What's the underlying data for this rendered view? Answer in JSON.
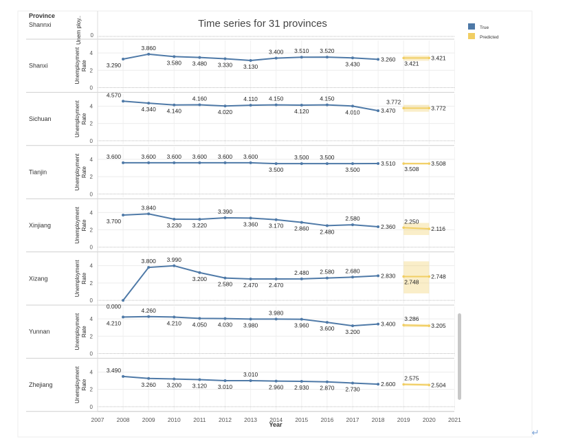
{
  "chart_data": {
    "type": "line",
    "title": "Time series for 31 provinces",
    "xlabel": "Year",
    "ylabel": "Unemployment Rate",
    "header_label": "Province",
    "x_ticks": [
      "2007",
      "2008",
      "2009",
      "2010",
      "2011",
      "2012",
      "2013",
      "2014",
      "2015",
      "2016",
      "2017",
      "2018",
      "2019",
      "2020",
      "2021"
    ],
    "y_ticks": [
      "0",
      "2",
      "4"
    ],
    "legend": [
      {
        "name": "True",
        "color": "#4e79a7"
      },
      {
        "name": "Predicted",
        "color": "#f1ce63"
      }
    ],
    "partial_row": {
      "province": "Shannxi",
      "ylabel_partial": "Unem ploy..",
      "tick": "0"
    },
    "panels": [
      {
        "province": "Shanxi",
        "true_years": [
          2008,
          2009,
          2010,
          2011,
          2012,
          2013,
          2014,
          2015,
          2016,
          2017,
          2018
        ],
        "true_values": [
          3.29,
          3.86,
          3.58,
          3.48,
          3.33,
          3.13,
          3.4,
          3.51,
          3.52,
          3.43,
          3.26
        ],
        "true_labels": [
          "3.290",
          "3.860",
          "3.580",
          "3.480",
          "3.330",
          "3.130",
          "3.400",
          "3.510",
          "3.520",
          "3.430",
          "3.260"
        ],
        "predicted": {
          "start": 3.421,
          "end": 3.421,
          "band_low": 3.1,
          "band_high": 3.7,
          "label_start": "3.421",
          "label_end": "3.421"
        }
      },
      {
        "province": "Sichuan",
        "true_years": [
          2008,
          2009,
          2010,
          2011,
          2012,
          2013,
          2014,
          2015,
          2016,
          2017,
          2018
        ],
        "true_values": [
          4.57,
          4.34,
          4.14,
          4.16,
          4.02,
          4.11,
          4.15,
          4.12,
          4.15,
          4.01,
          3.47
        ],
        "true_labels": [
          "4.570",
          "4.340",
          "4.140",
          "4.160",
          "4.020",
          "4.110",
          "4.150",
          "4.120",
          "4.150",
          "4.010",
          "3.470"
        ],
        "extra_label": "3.772",
        "predicted": {
          "start": 3.772,
          "end": 3.772,
          "band_low": 3.35,
          "band_high": 4.15,
          "label_start": "",
          "label_end": "3.772"
        }
      },
      {
        "province": "Tianjin",
        "true_years": [
          2008,
          2009,
          2010,
          2011,
          2012,
          2013,
          2014,
          2015,
          2016,
          2017,
          2018
        ],
        "true_values": [
          3.6,
          3.6,
          3.6,
          3.6,
          3.6,
          3.6,
          3.5,
          3.5,
          3.5,
          3.5,
          3.51
        ],
        "true_labels": [
          "3.600",
          "3.600",
          "3.600",
          "3.600",
          "3.600",
          "3.600",
          "3.500",
          "3.500",
          "3.500",
          "3.500",
          "3.510"
        ],
        "predicted": {
          "start": 3.508,
          "end": 3.508,
          "band_low": 3.4,
          "band_high": 3.62,
          "label_start": "3.508",
          "label_end": "3.508"
        }
      },
      {
        "province": "Xinjiang",
        "true_years": [
          2008,
          2009,
          2010,
          2011,
          2012,
          2013,
          2014,
          2015,
          2016,
          2017,
          2018
        ],
        "true_values": [
          3.7,
          3.84,
          3.23,
          3.22,
          3.39,
          3.36,
          3.17,
          2.86,
          2.48,
          2.58,
          2.36
        ],
        "true_labels": [
          "3.700",
          "3.840",
          "3.230",
          "3.220",
          "3.390",
          "3.360",
          "3.170",
          "2.860",
          "2.480",
          "2.580",
          "2.360"
        ],
        "predicted": {
          "start": 2.25,
          "end": 2.116,
          "band_low": 1.4,
          "band_high": 2.8,
          "label_start": "2.250",
          "label_end": "2.116"
        }
      },
      {
        "province": "Xizang",
        "true_years": [
          2008,
          2009,
          2010,
          2011,
          2012,
          2013,
          2014,
          2015,
          2016,
          2017,
          2018
        ],
        "true_values": [
          0.0,
          3.8,
          3.99,
          3.2,
          2.58,
          2.47,
          2.47,
          2.48,
          2.58,
          2.68,
          2.83
        ],
        "true_labels": [
          "0.000",
          "3.800",
          "3.990",
          "3.200",
          "2.580",
          "2.470",
          "2.470",
          "2.480",
          "2.580",
          "2.680",
          "2.830"
        ],
        "predicted": {
          "start": 2.748,
          "end": 2.748,
          "band_low": 0.8,
          "band_high": 4.5,
          "label_start": "2.748",
          "label_end": "2.748"
        }
      },
      {
        "province": "Yunnan",
        "true_years": [
          2008,
          2009,
          2010,
          2011,
          2012,
          2013,
          2014,
          2015,
          2016,
          2017,
          2018
        ],
        "true_values": [
          4.21,
          4.26,
          4.21,
          4.05,
          4.03,
          3.98,
          3.98,
          3.96,
          3.6,
          3.2,
          3.4
        ],
        "true_labels": [
          "4.210",
          "4.260",
          "4.210",
          "4.050",
          "4.030",
          "3.980",
          "3.980",
          "3.960",
          "3.600",
          "3.200",
          "3.400"
        ],
        "predicted": {
          "start": 3.286,
          "end": 3.205,
          "band_low": 3.05,
          "band_high": 3.4,
          "label_start": "3.286",
          "label_end": "3.205"
        }
      },
      {
        "province": "Zhejiang",
        "true_years": [
          2008,
          2009,
          2010,
          2011,
          2012,
          2013,
          2014,
          2015,
          2016,
          2017,
          2018
        ],
        "true_values": [
          3.49,
          3.26,
          3.2,
          3.12,
          3.01,
          3.01,
          2.96,
          2.93,
          2.87,
          2.73,
          2.6
        ],
        "true_labels": [
          "3.490",
          "3.260",
          "3.200",
          "3.120",
          "3.010",
          "3.010",
          "2.960",
          "2.930",
          "2.870",
          "2.730",
          "2.600"
        ],
        "predicted": {
          "start": 2.575,
          "end": 2.504,
          "band_low": 2.45,
          "band_high": 2.7,
          "label_start": "2.575",
          "label_end": "2.504"
        }
      }
    ]
  }
}
